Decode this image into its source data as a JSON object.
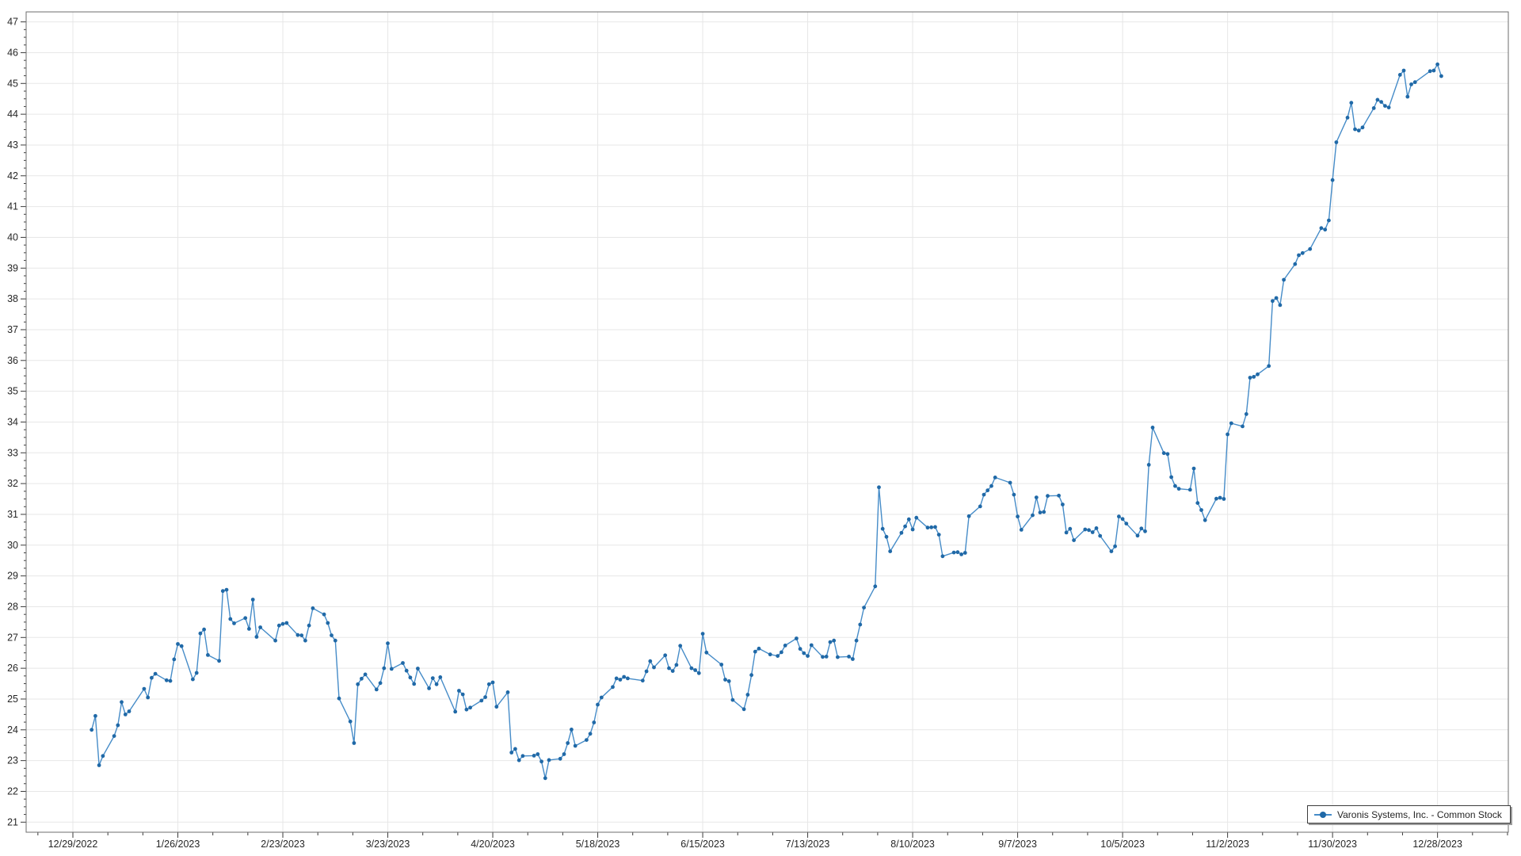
{
  "legend": {
    "label": "Varonis Systems, Inc. - Common Stock"
  },
  "colors": {
    "line": "#468cc8",
    "marker": "#2069a7",
    "grid": "#e7e7e7",
    "border": "#6e6e6e",
    "tick": "#3a3a3a",
    "text": "#262626",
    "background": "#ffffff",
    "legend_border": "#3c3c3c",
    "legend_shadow": "#9b9b9b"
  },
  "chart_data": {
    "type": "line",
    "title": "",
    "xlabel": "",
    "ylabel": "",
    "ylim": [
      21,
      47
    ],
    "y_tick_step": 1,
    "y_minor_step": 0.25,
    "x_tick_interval_days": 28,
    "x_minor_interval_days": 9.3333,
    "x_tick_start_date": "2022-12-29",
    "grid": true,
    "legend_position": "bottom-right",
    "x_tick_labels": [
      "12/29/2022",
      "1/26/2023",
      "2/23/2023",
      "3/23/2023",
      "4/20/2023",
      "5/18/2023",
      "6/15/2023",
      "7/13/2023",
      "8/10/2023",
      "9/7/2023",
      "10/5/2023",
      "11/2/2023",
      "11/30/2023",
      "12/28/2023"
    ],
    "series": [
      {
        "name": "Varonis Systems, Inc. - Common Stock",
        "dates": [
          "2023-01-03",
          "2023-01-04",
          "2023-01-05",
          "2023-01-06",
          "2023-01-09",
          "2023-01-10",
          "2023-01-11",
          "2023-01-12",
          "2023-01-13",
          "2023-01-17",
          "2023-01-18",
          "2023-01-19",
          "2023-01-20",
          "2023-01-23",
          "2023-01-24",
          "2023-01-25",
          "2023-01-26",
          "2023-01-27",
          "2023-01-30",
          "2023-01-31",
          "2023-02-01",
          "2023-02-02",
          "2023-02-03",
          "2023-02-06",
          "2023-02-07",
          "2023-02-08",
          "2023-02-09",
          "2023-02-10",
          "2023-02-13",
          "2023-02-14",
          "2023-02-15",
          "2023-02-16",
          "2023-02-17",
          "2023-02-21",
          "2023-02-22",
          "2023-02-23",
          "2023-02-24",
          "2023-02-27",
          "2023-02-28",
          "2023-03-01",
          "2023-03-02",
          "2023-03-03",
          "2023-03-06",
          "2023-03-07",
          "2023-03-08",
          "2023-03-09",
          "2023-03-10",
          "2023-03-13",
          "2023-03-14",
          "2023-03-15",
          "2023-03-16",
          "2023-03-17",
          "2023-03-20",
          "2023-03-21",
          "2023-03-22",
          "2023-03-23",
          "2023-03-24",
          "2023-03-27",
          "2023-03-28",
          "2023-03-29",
          "2023-03-30",
          "2023-03-31",
          "2023-04-03",
          "2023-04-04",
          "2023-04-05",
          "2023-04-06",
          "2023-04-10",
          "2023-04-11",
          "2023-04-12",
          "2023-04-13",
          "2023-04-14",
          "2023-04-17",
          "2023-04-18",
          "2023-04-19",
          "2023-04-20",
          "2023-04-21",
          "2023-04-24",
          "2023-04-25",
          "2023-04-26",
          "2023-04-27",
          "2023-04-28",
          "2023-05-01",
          "2023-05-02",
          "2023-05-03",
          "2023-05-04",
          "2023-05-05",
          "2023-05-08",
          "2023-05-09",
          "2023-05-10",
          "2023-05-11",
          "2023-05-12",
          "2023-05-15",
          "2023-05-16",
          "2023-05-17",
          "2023-05-18",
          "2023-05-19",
          "2023-05-22",
          "2023-05-23",
          "2023-05-24",
          "2023-05-25",
          "2023-05-26",
          "2023-05-30",
          "2023-05-31",
          "2023-06-01",
          "2023-06-02",
          "2023-06-05",
          "2023-06-06",
          "2023-06-07",
          "2023-06-08",
          "2023-06-09",
          "2023-06-12",
          "2023-06-13",
          "2023-06-14",
          "2023-06-15",
          "2023-06-16",
          "2023-06-20",
          "2023-06-21",
          "2023-06-22",
          "2023-06-23",
          "2023-06-26",
          "2023-06-27",
          "2023-06-28",
          "2023-06-29",
          "2023-06-30",
          "2023-07-03",
          "2023-07-05",
          "2023-07-06",
          "2023-07-07",
          "2023-07-10",
          "2023-07-11",
          "2023-07-12",
          "2023-07-13",
          "2023-07-14",
          "2023-07-17",
          "2023-07-18",
          "2023-07-19",
          "2023-07-20",
          "2023-07-21",
          "2023-07-24",
          "2023-07-25",
          "2023-07-26",
          "2023-07-27",
          "2023-07-28",
          "2023-07-31",
          "2023-08-01",
          "2023-08-02",
          "2023-08-03",
          "2023-08-04",
          "2023-08-07",
          "2023-08-08",
          "2023-08-09",
          "2023-08-10",
          "2023-08-11",
          "2023-08-14",
          "2023-08-15",
          "2023-08-16",
          "2023-08-17",
          "2023-08-18",
          "2023-08-21",
          "2023-08-22",
          "2023-08-23",
          "2023-08-24",
          "2023-08-25",
          "2023-08-28",
          "2023-08-29",
          "2023-08-30",
          "2023-08-31",
          "2023-09-01",
          "2023-09-05",
          "2023-09-06",
          "2023-09-07",
          "2023-09-08",
          "2023-09-11",
          "2023-09-12",
          "2023-09-13",
          "2023-09-14",
          "2023-09-15",
          "2023-09-18",
          "2023-09-19",
          "2023-09-20",
          "2023-09-21",
          "2023-09-22",
          "2023-09-25",
          "2023-09-26",
          "2023-09-27",
          "2023-09-28",
          "2023-09-29",
          "2023-10-02",
          "2023-10-03",
          "2023-10-04",
          "2023-10-05",
          "2023-10-06",
          "2023-10-09",
          "2023-10-10",
          "2023-10-11",
          "2023-10-12",
          "2023-10-13",
          "2023-10-16",
          "2023-10-17",
          "2023-10-18",
          "2023-10-19",
          "2023-10-20",
          "2023-10-23",
          "2023-10-24",
          "2023-10-25",
          "2023-10-26",
          "2023-10-27",
          "2023-10-30",
          "2023-10-31",
          "2023-11-01",
          "2023-11-02",
          "2023-11-03",
          "2023-11-06",
          "2023-11-07",
          "2023-11-08",
          "2023-11-09",
          "2023-11-10",
          "2023-11-13",
          "2023-11-14",
          "2023-11-15",
          "2023-11-16",
          "2023-11-17",
          "2023-11-20",
          "2023-11-21",
          "2023-11-22",
          "2023-11-24",
          "2023-11-27",
          "2023-11-28",
          "2023-11-29",
          "2023-11-30",
          "2023-12-01",
          "2023-12-04",
          "2023-12-05",
          "2023-12-06",
          "2023-12-07",
          "2023-12-08",
          "2023-12-11",
          "2023-12-12",
          "2023-12-13",
          "2023-12-14",
          "2023-12-15",
          "2023-12-18",
          "2023-12-19",
          "2023-12-20",
          "2023-12-21",
          "2023-12-22",
          "2023-12-26",
          "2023-12-27",
          "2023-12-28",
          "2023-12-29"
        ],
        "values": [
          24.0,
          24.45,
          22.85,
          23.15,
          23.8,
          24.15,
          24.9,
          24.5,
          24.6,
          25.33,
          25.05,
          25.69,
          25.82,
          25.61,
          25.59,
          26.29,
          26.79,
          26.72,
          25.64,
          25.85,
          27.13,
          27.26,
          26.43,
          26.24,
          28.51,
          28.55,
          27.6,
          27.46,
          27.63,
          27.28,
          28.23,
          27.02,
          27.33,
          26.9,
          27.39,
          27.44,
          27.47,
          27.08,
          27.07,
          26.9,
          27.39,
          27.95,
          27.75,
          27.47,
          27.07,
          26.9,
          25.02,
          24.27,
          23.57,
          25.48,
          25.66,
          25.8,
          25.31,
          25.52,
          26.0,
          26.81,
          25.98,
          26.17,
          25.92,
          25.7,
          25.49,
          25.99,
          25.35,
          25.68,
          25.48,
          25.71,
          24.59,
          25.27,
          25.15,
          24.66,
          24.72,
          24.95,
          25.06,
          25.48,
          25.54,
          24.75,
          25.22,
          23.26,
          23.38,
          23.01,
          23.15,
          23.16,
          23.21,
          22.97,
          22.43,
          23.02,
          23.06,
          23.21,
          23.57,
          24.01,
          23.48,
          23.67,
          23.87,
          24.24,
          24.82,
          25.05,
          25.39,
          25.67,
          25.63,
          25.72,
          25.67,
          25.6,
          25.9,
          26.23,
          26.03,
          26.42,
          26.0,
          25.91,
          26.11,
          26.73,
          26.0,
          25.94,
          25.84,
          27.12,
          26.51,
          26.12,
          25.63,
          25.58,
          24.97,
          24.67,
          25.14,
          25.78,
          26.54,
          26.64,
          26.45,
          26.4,
          26.52,
          26.74,
          26.97,
          26.63,
          26.49,
          26.4,
          26.75,
          26.37,
          26.38,
          26.85,
          26.9,
          26.36,
          26.38,
          26.3,
          26.9,
          27.42,
          27.97,
          28.66,
          31.88,
          30.53,
          30.27,
          29.8,
          30.4,
          30.61,
          30.84,
          30.51,
          30.89,
          30.57,
          30.58,
          30.59,
          30.34,
          29.64,
          29.76,
          29.77,
          29.7,
          29.75,
          30.94,
          31.26,
          31.64,
          31.78,
          31.92,
          32.2,
          32.03,
          31.64,
          30.93,
          30.5,
          30.97,
          31.55,
          31.06,
          31.08,
          31.6,
          31.61,
          31.32,
          30.41,
          30.53,
          30.16,
          30.51,
          30.49,
          30.42,
          30.55,
          30.3,
          29.8,
          29.96,
          30.93,
          30.85,
          30.7,
          30.31,
          30.54,
          30.45,
          32.61,
          33.82,
          32.99,
          32.96,
          32.21,
          31.92,
          31.83,
          31.8,
          32.49,
          31.37,
          31.14,
          30.81,
          31.51,
          31.54,
          31.5,
          33.6,
          33.96,
          33.86,
          34.26,
          35.44,
          35.47,
          35.55,
          35.82,
          37.93,
          38.03,
          37.8,
          38.62,
          39.13,
          39.42,
          39.49,
          39.62,
          40.3,
          40.25,
          40.55,
          41.86,
          43.09,
          43.89,
          44.37,
          43.51,
          43.47,
          43.57,
          44.2,
          44.47,
          44.4,
          44.27,
          44.22,
          45.28,
          45.42,
          44.57,
          44.97,
          45.04,
          45.4,
          45.42,
          45.62,
          45.24
        ]
      }
    ]
  }
}
